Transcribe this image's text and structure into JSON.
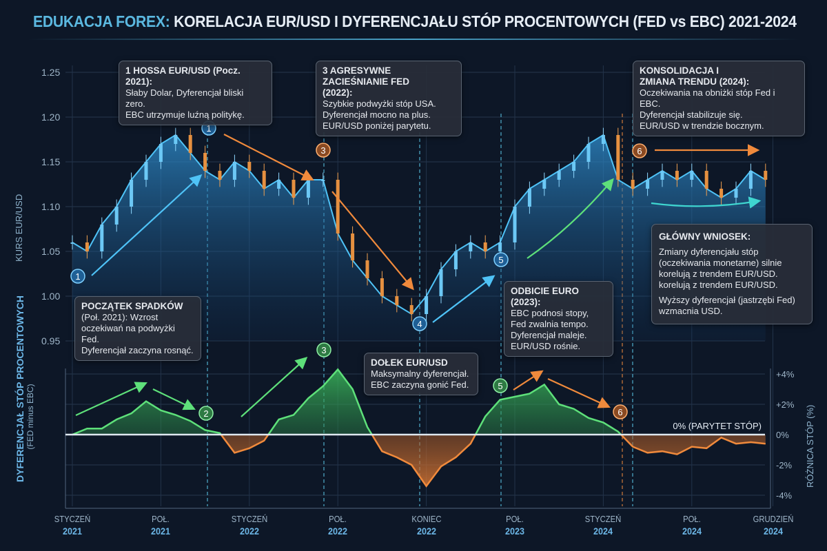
{
  "title": {
    "accent": "EDUKACJA FOREX:",
    "main": "KORELACJA EUR/USD I DYFERENCJAŁU STÓP PROCENTOWYCH (FED vs EBC) 2021-2024"
  },
  "colors": {
    "background": "#0d1727",
    "eurusd": "#4fc3f7",
    "positive": "#5ee07a",
    "negative": "#f08a3c",
    "accent": "#5bb8e0"
  },
  "chart_data": [
    {
      "type": "area",
      "ylabel": "KURS EUR/USD",
      "ylim": [
        0.95,
        1.25
      ],
      "yticks": [
        "1.25",
        "1.20",
        "1.15",
        "1.10",
        "1.05",
        "1.00",
        "0.95"
      ],
      "grid": true,
      "x_months": "2021-01 .. 2024-12 (monthly)",
      "values": [
        1.06,
        1.05,
        1.08,
        1.1,
        1.13,
        1.15,
        1.17,
        1.18,
        1.16,
        1.14,
        1.13,
        1.15,
        1.14,
        1.12,
        1.13,
        1.11,
        1.13,
        1.13,
        1.07,
        1.04,
        1.02,
        1.0,
        0.99,
        0.98,
        1.0,
        1.03,
        1.05,
        1.06,
        1.05,
        1.06,
        1.1,
        1.12,
        1.13,
        1.14,
        1.15,
        1.17,
        1.18,
        1.13,
        1.12,
        1.13,
        1.14,
        1.13,
        1.14,
        1.12,
        1.11,
        1.12,
        1.14,
        1.13
      ]
    },
    {
      "type": "area",
      "ylabel": "DYFERENCJAŁ STÓP PROCENTOWYCH",
      "ylabel_sub": "(FED minus EBC)",
      "ylabel_right": "RÓŻNICA STÓP (%)",
      "ylim": [
        -4.5,
        4.5
      ],
      "yticks": [
        "+4%",
        "+2%",
        "0%",
        "-2%",
        "-4%"
      ],
      "zero_label": "0% (PARYTET STÓP)",
      "grid": true,
      "values": [
        0,
        0.4,
        0.4,
        1.0,
        1.4,
        2.2,
        1.6,
        1.3,
        0.9,
        0.3,
        0.1,
        -1.2,
        -0.9,
        -0.4,
        1.0,
        1.3,
        2.4,
        3.2,
        4.3,
        3.0,
        0.5,
        -1.1,
        -1.5,
        -2.0,
        -3.4,
        -2.1,
        -1.5,
        -0.6,
        1.2,
        2.3,
        2.5,
        2.7,
        3.3,
        2.0,
        1.7,
        1.1,
        0.8,
        0.2,
        -0.8,
        -1.2,
        -1.1,
        -1.3,
        -0.8,
        -0.9,
        -0.2,
        -0.6,
        -0.5,
        -0.6
      ]
    }
  ],
  "xaxis": [
    {
      "label": "STYCZEŃ",
      "year": "2021"
    },
    {
      "label": "POŁ.",
      "year": "2021"
    },
    {
      "label": "STYCZEŃ",
      "year": "2022"
    },
    {
      "label": "POŁ.",
      "year": "2022"
    },
    {
      "label": "KONIEC",
      "year": "2022"
    },
    {
      "label": "POŁ.",
      "year": "2023"
    },
    {
      "label": "STYCZEŃ",
      "year": "2024"
    },
    {
      "label": "POŁ.",
      "year": "2024"
    },
    {
      "label": "GRUDZIEŃ",
      "year": "2024"
    }
  ],
  "callouts": [
    {
      "title": "1 HOSSA EUR/USD (Pocz. 2021):",
      "lines": [
        "Słaby Dolar, Dyferencjał bliski zero.",
        "EBC utrzymuje luźną politykę."
      ]
    },
    {
      "title": "3 AGRESYWNE ZACIEŚNIANIE FED (2022):",
      "lines": [
        "Szybkie podwyżki stóp USA.",
        "Dyferencjał mocno na plus.",
        "EUR/USD poniżej parytetu."
      ]
    },
    {
      "title": "KONSOLIDACJA I ZMIANA TRENDU (2024):",
      "lines": [
        "Oczekiwania na obniżki stóp Fed i EBC.",
        "Dyferencjał stabilizuje się.",
        "EUR/USD w trendzie bocznym."
      ]
    },
    {
      "title": "POCZĄTEK SPADKÓW",
      "lines": [
        "(Poł. 2021): Wzrost",
        "oczekiwań na podwyżki Fed.",
        "Dyferencjał zaczyna rosnąć."
      ]
    },
    {
      "title": "DOŁEK EUR/USD",
      "lines": [
        "Maksymalny dyferencjał.",
        "EBC zaczyna gonić Fed."
      ]
    },
    {
      "title": "ODBICIE EURO (2023):",
      "lines": [
        "EBC podnosi stopy,",
        "Fed zwalnia tempo.",
        "Dyferencjał maleje.",
        "EUR/USD rośnie."
      ]
    },
    {
      "title": "GŁÓWNY WNIOSEK:",
      "lines": [
        "Zmiany dyferencjału stóp",
        "(oczekiwania monetarne) silnie",
        "korelują z trendem EUR/USD.",
        "korelują z trendem EUR/USD.",
        "",
        "Wyższy dyferencjał (jastrzębi Fed)",
        "wzmacnia USD."
      ]
    }
  ],
  "markers": [
    {
      "n": "1",
      "color": "blue"
    },
    {
      "n": "1",
      "color": "blue"
    },
    {
      "n": "3",
      "color": "orange"
    },
    {
      "n": "4",
      "color": "blue"
    },
    {
      "n": "5",
      "color": "blue"
    },
    {
      "n": "6",
      "color": "orange"
    },
    {
      "n": "2",
      "color": "green"
    },
    {
      "n": "3",
      "color": "green"
    },
    {
      "n": "5",
      "color": "green"
    },
    {
      "n": "6",
      "color": "orange"
    }
  ]
}
